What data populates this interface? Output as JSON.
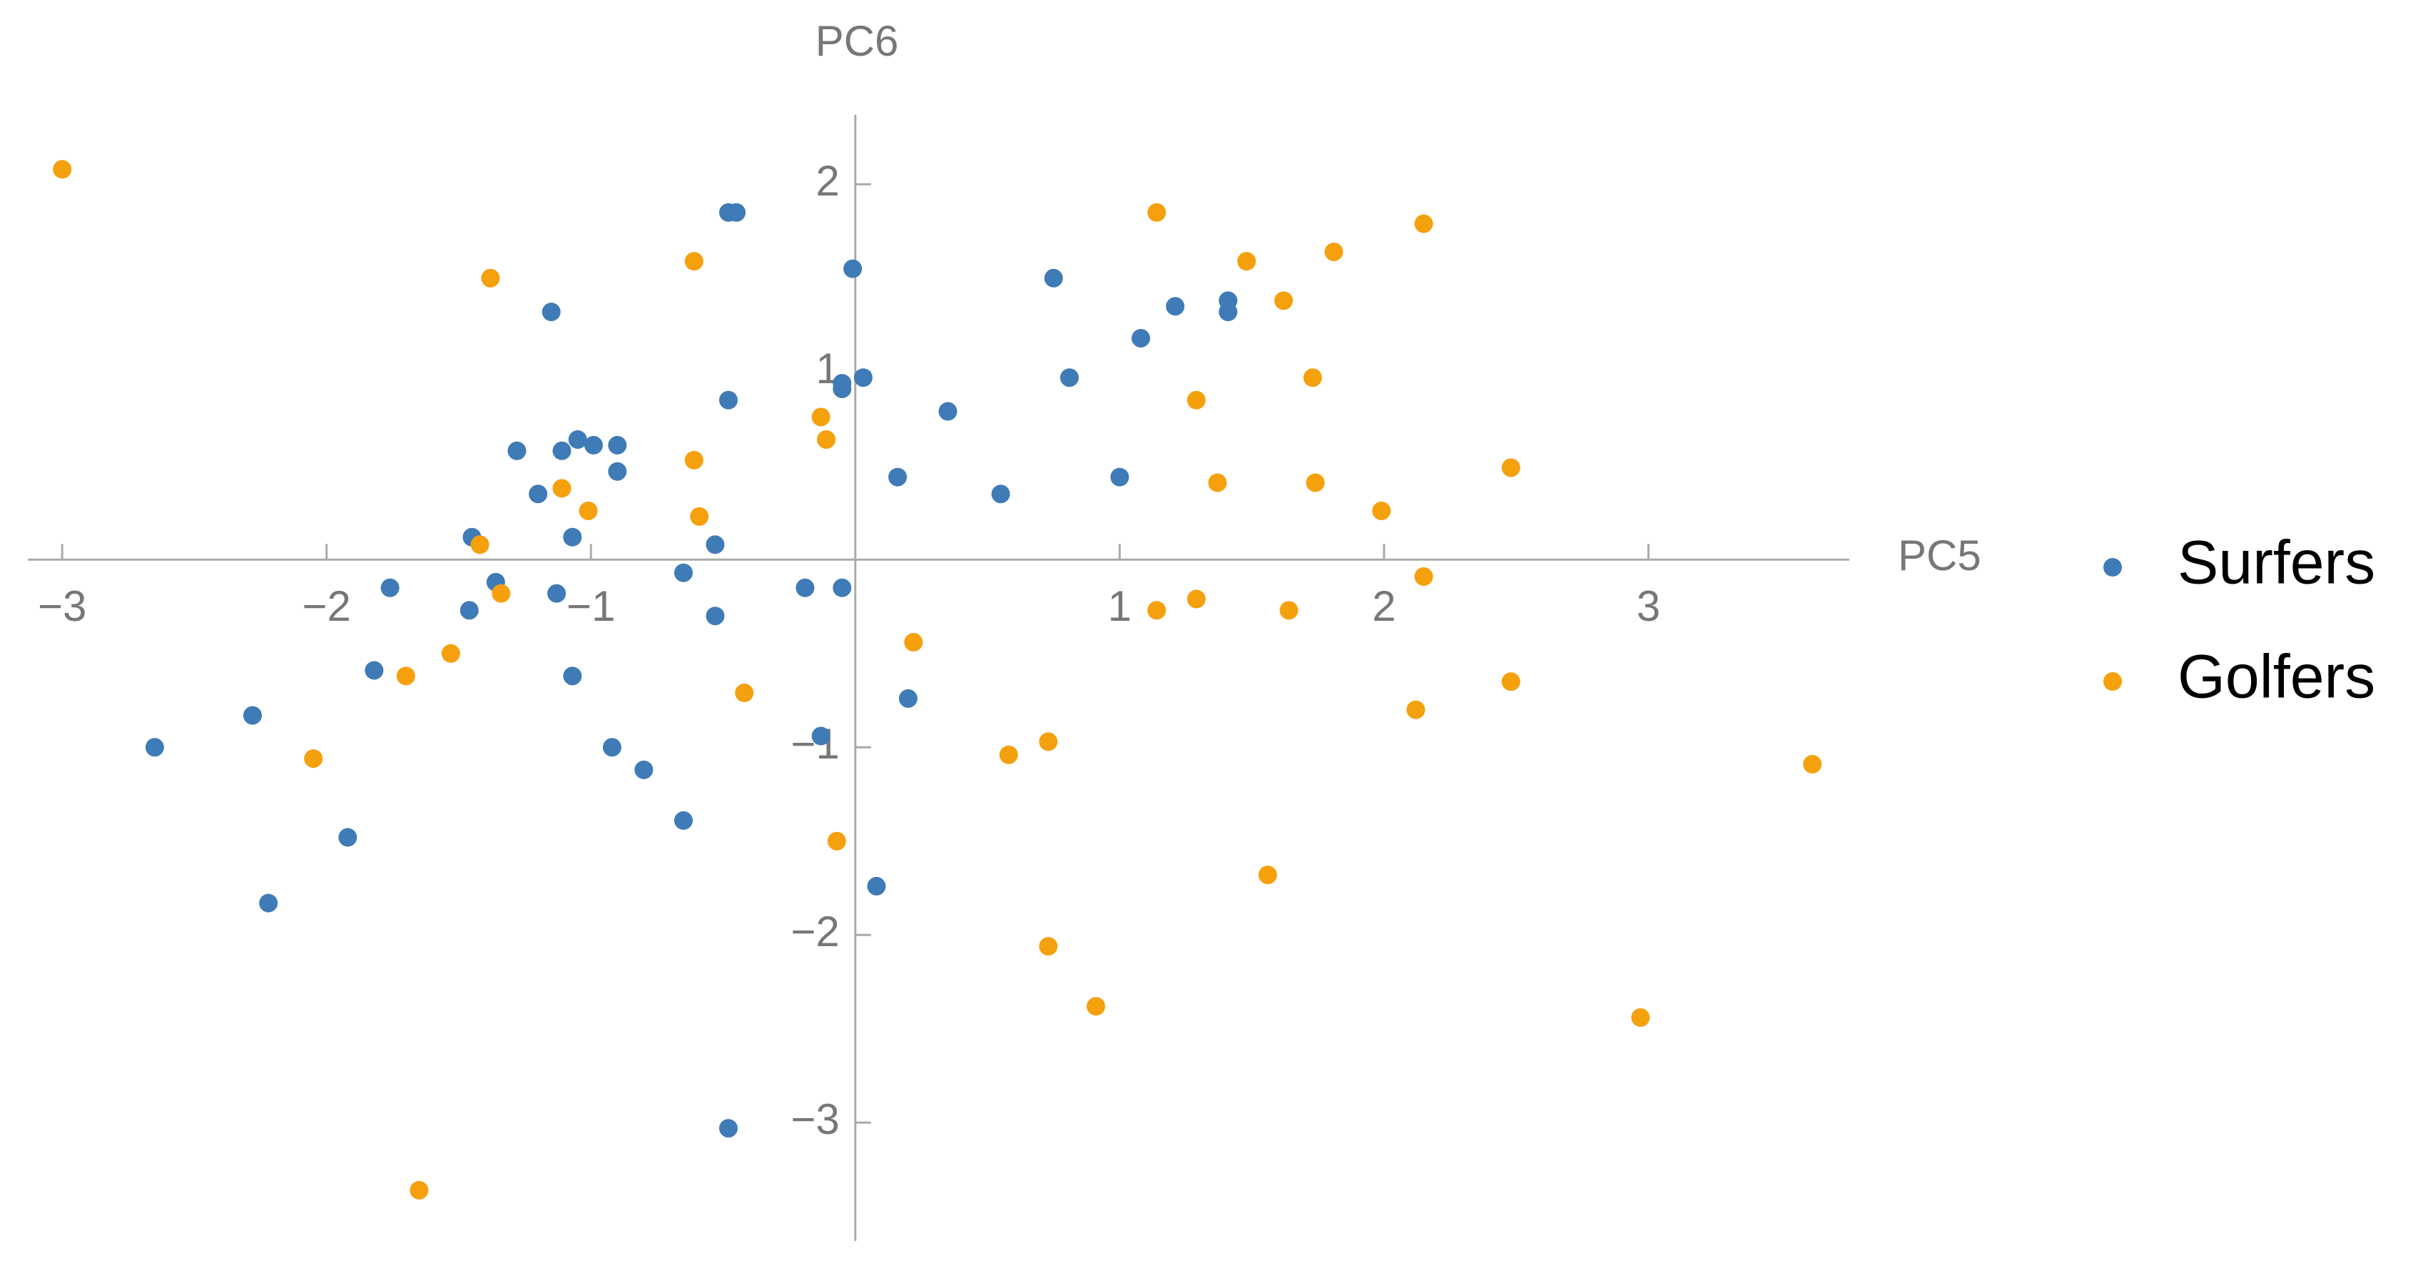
{
  "chart_data": {
    "type": "scatter",
    "x_label": "PC5",
    "y_label": "PC6",
    "xlim": [
      -3.13,
      3.76
    ],
    "ylim": [
      -3.63,
      2.37
    ],
    "xticks": [
      {
        "value": -3,
        "label": "−3"
      },
      {
        "value": -2,
        "label": "−2"
      },
      {
        "value": -1,
        "label": "−1"
      },
      1,
      2,
      3
    ],
    "yticks": [
      {
        "value": -3,
        "label": "−3"
      },
      {
        "value": -2,
        "label": "−2"
      },
      {
        "value": -1,
        "label": "−1"
      },
      1,
      2
    ],
    "legend": "right",
    "series": [
      {
        "name": "Surfers",
        "color": "#3f7bb6",
        "x": [
          -0.01,
          -0.48,
          -0.45,
          -1.15,
          0.75,
          1.21,
          1.41,
          1.41,
          1.08,
          0.81,
          0.03,
          -0.05,
          -0.05,
          -0.48,
          0.35,
          -1.28,
          -1.11,
          -1.05,
          -0.99,
          -0.9,
          -0.9,
          0.16,
          1.0,
          0.55,
          -1.2,
          -1.45,
          -1.07,
          -0.53,
          -0.65,
          -1.36,
          -1.76,
          -1.13,
          -0.19,
          -0.05,
          -1.46,
          -0.53,
          -1.82,
          -1.07,
          0.2,
          -2.28,
          -2.65,
          -0.92,
          -0.13,
          -0.8,
          -0.65,
          -1.92,
          0.08,
          -2.22,
          -0.48
        ],
        "values": [
          1.55,
          1.85,
          1.85,
          1.32,
          1.5,
          1.35,
          1.38,
          1.32,
          1.18,
          0.97,
          0.97,
          0.94,
          0.91,
          0.85,
          0.79,
          0.58,
          0.58,
          0.64,
          0.61,
          0.61,
          0.47,
          0.44,
          0.44,
          0.35,
          0.35,
          0.12,
          0.12,
          0.08,
          -0.07,
          -0.12,
          -0.15,
          -0.18,
          -0.15,
          -0.15,
          -0.27,
          -0.3,
          -0.59,
          -0.62,
          -0.74,
          -0.83,
          -1.0,
          -1.0,
          -0.94,
          -1.12,
          -1.39,
          -1.48,
          -1.74,
          -1.83,
          -3.03
        ]
      },
      {
        "name": "Golfers",
        "color": "#f5a00d",
        "x": [
          -3.0,
          1.14,
          2.15,
          1.81,
          1.48,
          -0.61,
          -1.38,
          1.62,
          1.73,
          1.29,
          -0.13,
          -0.11,
          -0.61,
          2.48,
          1.37,
          1.74,
          -1.11,
          -1.01,
          1.99,
          -0.59,
          -1.42,
          -1.34,
          2.15,
          1.29,
          1.14,
          1.64,
          0.22,
          -1.53,
          -1.7,
          2.48,
          -0.42,
          2.12,
          0.73,
          0.58,
          -2.05,
          3.62,
          -0.07,
          1.56,
          0.73,
          0.91,
          2.97,
          -1.65
        ],
        "values": [
          2.08,
          1.85,
          1.79,
          1.64,
          1.59,
          1.59,
          1.5,
          1.38,
          0.97,
          0.85,
          0.76,
          0.64,
          0.53,
          0.49,
          0.41,
          0.41,
          0.38,
          0.26,
          0.26,
          0.23,
          0.08,
          -0.18,
          -0.09,
          -0.21,
          -0.27,
          -0.27,
          -0.44,
          -0.5,
          -0.62,
          -0.65,
          -0.71,
          -0.8,
          -0.97,
          -1.04,
          -1.06,
          -1.09,
          -1.5,
          -1.68,
          -2.06,
          -2.38,
          -2.44,
          -3.36
        ]
      }
    ]
  }
}
